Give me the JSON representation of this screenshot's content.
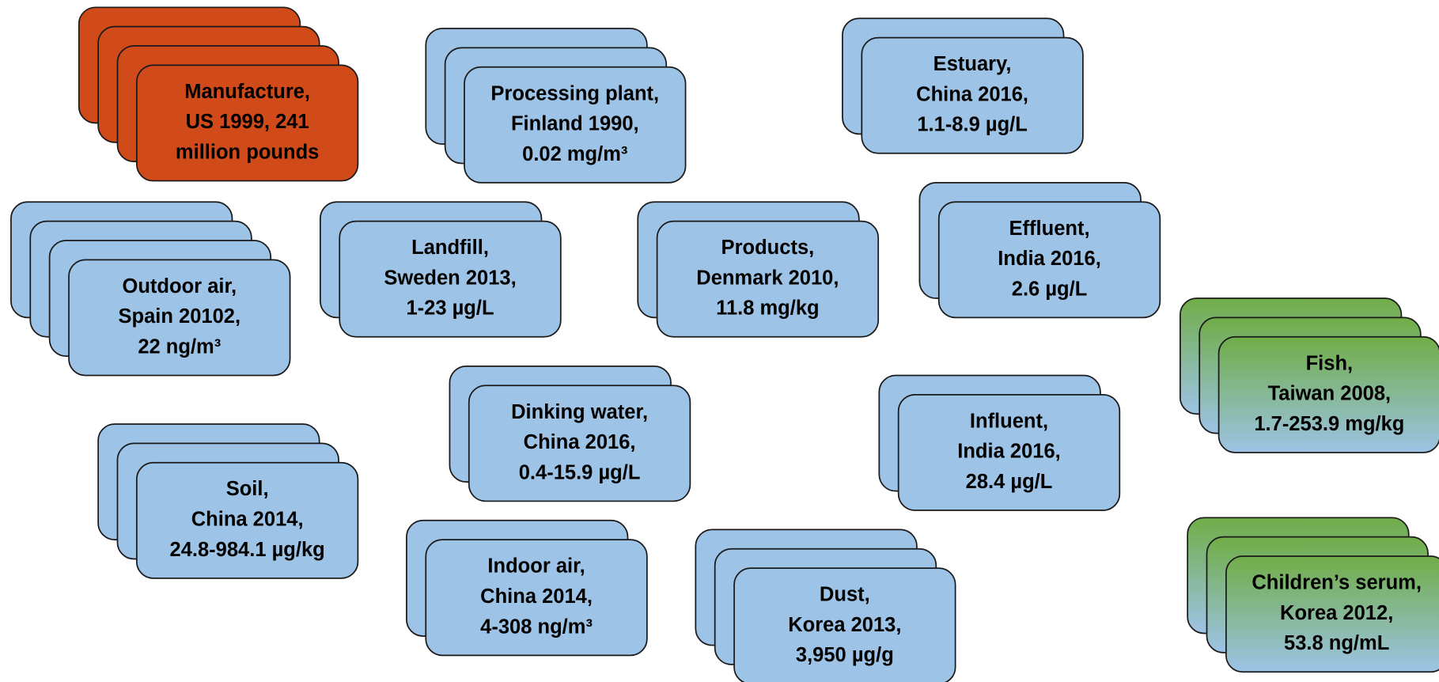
{
  "nodes": [
    {
      "lines": [
        "Manufacture,",
        "US 1999, 241",
        "million pounds"
      ]
    },
    {
      "lines": [
        "Processing plant,",
        "Finland 1990,",
        "0.02 mg/m³"
      ]
    },
    {
      "lines": [
        "Estuary,",
        "China 2016,",
        "1.1-8.9 µg/L"
      ]
    },
    {
      "lines": [
        "Outdoor air,",
        "Spain 20102,",
        "22 ng/m³"
      ]
    },
    {
      "lines": [
        "Landfill,",
        "Sweden 2013,",
        "1-23 µg/L"
      ]
    },
    {
      "lines": [
        "Products,",
        "Denmark 2010,",
        "11.8 mg/kg"
      ]
    },
    {
      "lines": [
        "Effluent,",
        "India 2016,",
        "2.6 µg/L"
      ]
    },
    {
      "lines": [
        "Fish,",
        "Taiwan 2008,",
        "1.7-253.9 mg/kg"
      ]
    },
    {
      "lines": [
        "Dinking water,",
        "China 2016,",
        "0.4-15.9 µg/L"
      ]
    },
    {
      "lines": [
        "Influent,",
        "India 2016,",
        "28.4 µg/L"
      ]
    },
    {
      "lines": [
        "Soil,",
        "China 2014,",
        "24.8-984.1 µg/kg"
      ]
    },
    {
      "lines": [
        "Indoor air,",
        "China 2014,",
        "4-308 ng/m³"
      ]
    },
    {
      "lines": [
        "Dust,",
        "Korea 2013,",
        "3,950 µg/g"
      ]
    },
    {
      "lines": [
        "Children’s serum,",
        "Korea 2012,",
        "53.8 ng/mL"
      ]
    }
  ]
}
